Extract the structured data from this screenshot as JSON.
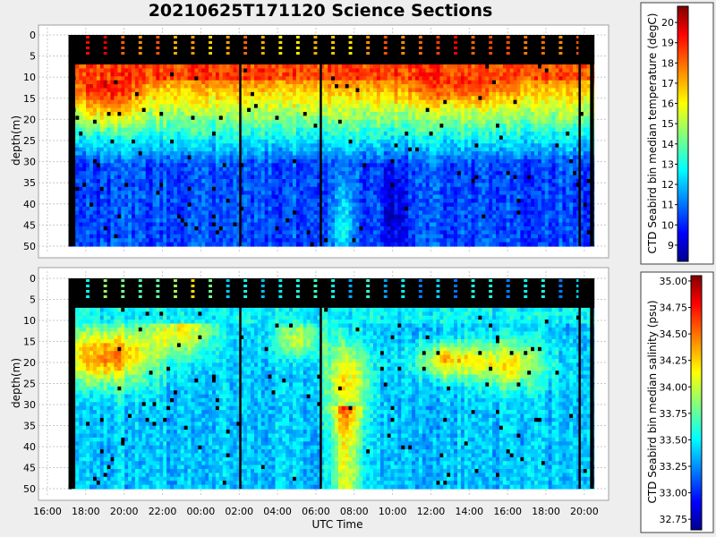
{
  "title": "20210625T171120 Science Sections",
  "colors": {
    "background": "#eeeeee",
    "panel": "#ffffff",
    "missing": "#000000",
    "colormap": [
      "#00008f",
      "#0000ff",
      "#00ffff",
      "#ffff00",
      "#ff0000",
      "#800000"
    ]
  },
  "chart_data": [
    {
      "type": "heatmap",
      "name": "temperature-section",
      "xlabel": "",
      "ylabel": "depth(m)",
      "y_ticks": [
        "0",
        "5",
        "10",
        "15",
        "20",
        "25",
        "30",
        "35",
        "40",
        "45",
        "50"
      ],
      "ylim": [
        0,
        50
      ],
      "x_range_hours": [
        16,
        44.8
      ],
      "data_x_range_hours": [
        17.1,
        44.5
      ],
      "surface_gap_depth_m": 7,
      "colorbar": {
        "label": "CTD Seabird bin median temperature (degC)",
        "range": [
          8.2,
          20.8
        ],
        "ticks": [
          "9",
          "10",
          "11",
          "12",
          "13",
          "14",
          "15",
          "16",
          "17",
          "18",
          "19",
          "20"
        ]
      }
    },
    {
      "type": "heatmap",
      "name": "salinity-section",
      "xlabel": "UTC Time",
      "ylabel": "depth(m)",
      "x_ticks": [
        "16:00",
        "18:00",
        "20:00",
        "22:00",
        "00:00",
        "02:00",
        "04:00",
        "06:00",
        "08:00",
        "10:00",
        "12:00",
        "14:00",
        "16:00",
        "18:00",
        "20:00"
      ],
      "y_ticks": [
        "0",
        "5",
        "10",
        "15",
        "20",
        "25",
        "30",
        "35",
        "40",
        "45",
        "50"
      ],
      "ylim": [
        0,
        50
      ],
      "x_range_hours": [
        16,
        44.8
      ],
      "data_x_range_hours": [
        17.1,
        44.5
      ],
      "surface_gap_depth_m": 7,
      "colorbar": {
        "label": "CTD Seabird bin median salinity (psu)",
        "range": [
          32.65,
          35.05
        ],
        "ticks": [
          "32.75",
          "33.00",
          "33.25",
          "33.50",
          "33.75",
          "34.00",
          "34.25",
          "34.50",
          "34.75",
          "35.00"
        ]
      }
    }
  ]
}
